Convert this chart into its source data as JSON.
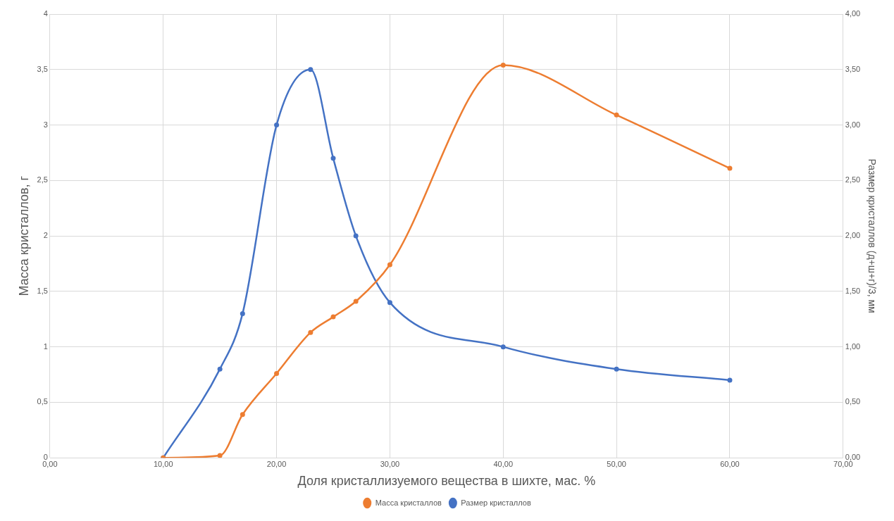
{
  "chart_data": {
    "type": "line",
    "xlabel": "Доля кристаллизуемого вещества в шихте, мас. %",
    "ylabel": "Масса кристаллов, г",
    "y2label": "Размер кристаллов (д+ш+г)/3, мм",
    "x": [
      10,
      15,
      17,
      20,
      23,
      25,
      27,
      30,
      40,
      50,
      60
    ],
    "series": [
      {
        "name": "Масса кристаллов",
        "color": "#ed7d31",
        "values": [
          0,
          0.02,
          0.39,
          0.76,
          1.13,
          1.27,
          1.41,
          1.74,
          3.54,
          3.09,
          2.61
        ]
      },
      {
        "name": "Размер кристаллов",
        "color": "#4472c4",
        "axis": "y2",
        "values": [
          0,
          0.8,
          1.3,
          3.0,
          3.5,
          2.7,
          2.0,
          1.4,
          1.0,
          0.8,
          0.7
        ]
      }
    ],
    "xlim": [
      0,
      70
    ],
    "xticks": [
      {
        "value": 0,
        "label": "0,00"
      },
      {
        "value": 10,
        "label": "10,00"
      },
      {
        "value": 20,
        "label": "20,00"
      },
      {
        "value": 30,
        "label": "30,00"
      },
      {
        "value": 40,
        "label": "40,00"
      },
      {
        "value": 50,
        "label": "50,00"
      },
      {
        "value": 60,
        "label": "60,00"
      },
      {
        "value": 70,
        "label": "70,00"
      }
    ],
    "ylim": [
      0,
      4
    ],
    "yticks": [
      0,
      {
        "value": 0.5,
        "label": "0,5"
      },
      1,
      {
        "value": 1.5,
        "label": "1,5"
      },
      2,
      {
        "value": 2.5,
        "label": "2,5"
      },
      3,
      {
        "value": 3.5,
        "label": "3,5"
      },
      4
    ],
    "y2lim": [
      0,
      4
    ],
    "y2ticks": [
      {
        "value": 0,
        "label": "0,00"
      },
      {
        "value": 0.5,
        "label": "0,50"
      },
      {
        "value": 1,
        "label": "1,00"
      },
      {
        "value": 1.5,
        "label": "1,50"
      },
      {
        "value": 2,
        "label": "2,00"
      },
      {
        "value": 2.5,
        "label": "2,50"
      },
      {
        "value": 3,
        "label": "3,00"
      },
      {
        "value": 3.5,
        "label": "3,50"
      },
      {
        "value": 4,
        "label": "4,00"
      }
    ],
    "grid": true,
    "legend": "bottom",
    "marker": "circle",
    "line_style": "solid"
  }
}
